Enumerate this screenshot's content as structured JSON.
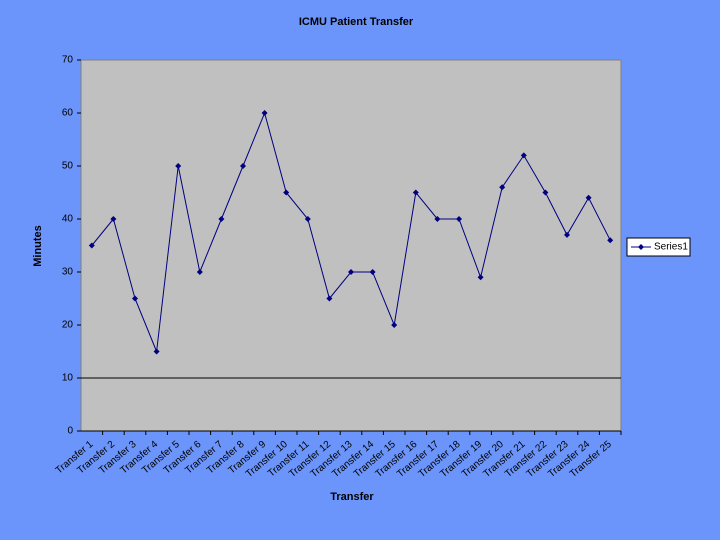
{
  "chart_data": {
    "type": "line",
    "title": "ICMU Patient Transfer",
    "x_label": "Transfer",
    "y_label": "Minutes",
    "categories": [
      "Transfer 1",
      "Transfer 2",
      "Transfer 3",
      "Transfer 4",
      "Transfer 5",
      "Transfer 6",
      "Transfer 7",
      "Transfer 8",
      "Transfer 9",
      "Transfer 10",
      "Transfer 11",
      "Transfer 12",
      "Transfer 13",
      "Transfer 14",
      "Transfer 15",
      "Transfer 16",
      "Transfer 17",
      "Transfer 18",
      "Transfer 19",
      "Transfer 20",
      "Transfer 21",
      "Transfer 22",
      "Transfer 23",
      "Transfer 24",
      "Transfer 25"
    ],
    "series": [
      {
        "name": "Series1",
        "color": "#000080",
        "values": [
          35,
          40,
          25,
          15,
          50,
          30,
          40,
          50,
          60,
          45,
          40,
          25,
          30,
          30,
          20,
          45,
          40,
          40,
          29,
          46,
          52,
          45,
          37,
          44,
          36
        ]
      }
    ],
    "ylim": [
      0,
      70
    ],
    "yticks": [
      0,
      10,
      20,
      30,
      40,
      50,
      60,
      70
    ],
    "x_axis_crosses_at": 10,
    "legend": "right"
  }
}
